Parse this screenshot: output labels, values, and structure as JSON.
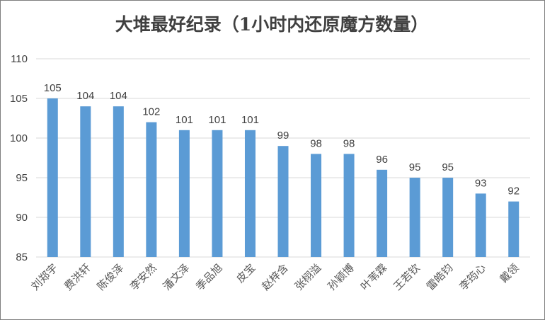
{
  "chart_data": {
    "type": "bar",
    "title": "大堆最好纪录（1小时内还原魔方数量）",
    "categories": [
      "刘郑宇",
      "费洪轩",
      "陈俊泽",
      "李安然",
      "潘文泽",
      "季品旭",
      "皮宝",
      "赵梓含",
      "张栩溢",
      "孙颖博",
      "叶苇霖",
      "王若钦",
      "雷皓钧",
      "李筠心",
      "戴领"
    ],
    "values": [
      105,
      104,
      104,
      102,
      101,
      101,
      101,
      99,
      98,
      98,
      96,
      95,
      95,
      93,
      92
    ],
    "ylim": [
      85,
      110
    ],
    "yticks": [
      85,
      90,
      95,
      100,
      105,
      110
    ],
    "xlabel": "",
    "ylabel": "",
    "grid": true,
    "data_labels": true,
    "bar_color": "#5b9bd5",
    "gridline_color": "#d9d9d9",
    "text_color": "#404040"
  }
}
